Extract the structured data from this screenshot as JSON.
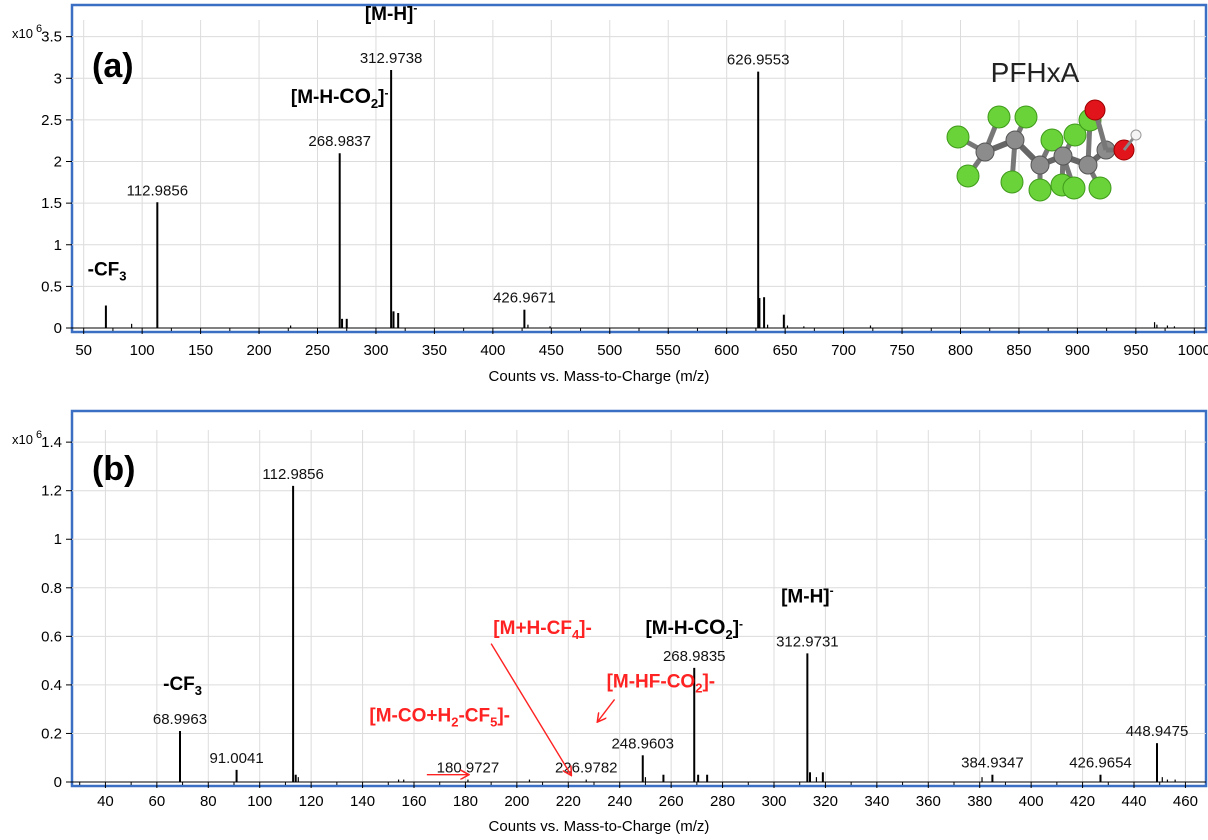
{
  "chart_data": [
    {
      "type": "bar",
      "panel_label": "(a)",
      "y_multiplier": "x10",
      "y_exponent": "6",
      "xlabel": "Counts vs. Mass-to-Charge (m/z)",
      "xlim": [
        40,
        1010
      ],
      "ylim": [
        0,
        3.7
      ],
      "xticks": [
        50,
        100,
        150,
        200,
        250,
        300,
        350,
        400,
        450,
        500,
        550,
        600,
        650,
        700,
        750,
        800,
        850,
        900,
        950,
        1000
      ],
      "yticks": [
        0,
        0.5,
        1,
        1.5,
        2,
        2.5,
        3,
        3.5
      ],
      "ytick_labels": [
        "0",
        "0.5",
        "1",
        "1.5",
        "2",
        "2.5",
        "3",
        "3.5"
      ],
      "grid": true,
      "molecule_label": "PFHxA",
      "peaks": [
        {
          "x": 68.9963,
          "y": 0.27
        },
        {
          "x": 91.0,
          "y": 0.05
        },
        {
          "x": 112.9856,
          "y": 1.51,
          "label": "112.9856"
        },
        {
          "x": 227.0,
          "y": 0.03
        },
        {
          "x": 268.9837,
          "y": 2.1,
          "label": "268.9837"
        },
        {
          "x": 271.0,
          "y": 0.11
        },
        {
          "x": 275.0,
          "y": 0.11
        },
        {
          "x": 312.9738,
          "y": 3.1,
          "label": "312.9738"
        },
        {
          "x": 315.0,
          "y": 0.2
        },
        {
          "x": 319.0,
          "y": 0.18
        },
        {
          "x": 426.9671,
          "y": 0.22,
          "label": "426.9671"
        },
        {
          "x": 430.0,
          "y": 0.04
        },
        {
          "x": 448.9,
          "y": 0.02
        },
        {
          "x": 626.9553,
          "y": 3.08,
          "label": "626.9553"
        },
        {
          "x": 628.0,
          "y": 0.36
        },
        {
          "x": 632.0,
          "y": 0.37
        },
        {
          "x": 635.0,
          "y": 0.04
        },
        {
          "x": 648.9,
          "y": 0.16
        },
        {
          "x": 652.0,
          "y": 0.03
        },
        {
          "x": 666.0,
          "y": 0.02
        },
        {
          "x": 723.0,
          "y": 0.03
        },
        {
          "x": 966.0,
          "y": 0.07
        },
        {
          "x": 968.0,
          "y": 0.04
        },
        {
          "x": 977.0,
          "y": 0.03
        },
        {
          "x": 983.0,
          "y": 0.02
        }
      ],
      "annotations": [
        {
          "base": "[M-H]",
          "sup": "-",
          "color": "#000000",
          "x": 312.9738,
          "y": 3.7
        },
        {
          "base": "[M-H-",
          "bold": "CO",
          "sub": "2",
          "tail": "]",
          "sup": "-",
          "color": "#000000",
          "x": 268.9837,
          "y": 2.7
        },
        {
          "base": "-CF",
          "sub": "3",
          "color": "#000000",
          "x": 70.0,
          "y": 0.63
        }
      ]
    },
    {
      "type": "bar",
      "panel_label": "(b)",
      "y_multiplier": "x10",
      "y_exponent": "6",
      "xlabel": "Counts vs. Mass-to-Charge (m/z)",
      "xlim": [
        27,
        468
      ],
      "ylim": [
        0,
        1.45
      ],
      "xticks": [
        40,
        60,
        80,
        100,
        120,
        140,
        160,
        180,
        200,
        220,
        240,
        260,
        280,
        300,
        320,
        340,
        360,
        380,
        400,
        420,
        440,
        460
      ],
      "yticks": [
        0,
        0.2,
        0.4,
        0.6,
        0.8,
        1,
        1.2,
        1.4
      ],
      "ytick_labels": [
        "0",
        "0.2",
        "0.4",
        "0.6",
        "0.8",
        "1",
        "1.2",
        "1.4"
      ],
      "grid": true,
      "peaks": [
        {
          "x": 68.9963,
          "y": 0.21,
          "label": "68.9963"
        },
        {
          "x": 91.0041,
          "y": 0.05,
          "label": "91.0041"
        },
        {
          "x": 112.9856,
          "y": 1.22,
          "label": "112.9856"
        },
        {
          "x": 114.0,
          "y": 0.03
        },
        {
          "x": 115.0,
          "y": 0.02
        },
        {
          "x": 154.0,
          "y": 0.01
        },
        {
          "x": 156.0,
          "y": 0.01
        },
        {
          "x": 180.9727,
          "y": 0.01,
          "label": "180.9727"
        },
        {
          "x": 204.9,
          "y": 0.01
        },
        {
          "x": 226.9782,
          "y": 0.01,
          "label": "226.9782"
        },
        {
          "x": 248.9603,
          "y": 0.11,
          "label": "248.9603"
        },
        {
          "x": 250.0,
          "y": 0.02
        },
        {
          "x": 257.0,
          "y": 0.03
        },
        {
          "x": 268.9835,
          "y": 0.47,
          "label": "268.9835"
        },
        {
          "x": 270.5,
          "y": 0.03
        },
        {
          "x": 274.0,
          "y": 0.03
        },
        {
          "x": 312.9731,
          "y": 0.53,
          "label": "312.9731"
        },
        {
          "x": 314.0,
          "y": 0.04
        },
        {
          "x": 316.5,
          "y": 0.02
        },
        {
          "x": 319.0,
          "y": 0.04
        },
        {
          "x": 380.9,
          "y": 0.02
        },
        {
          "x": 384.9347,
          "y": 0.03,
          "label": "384.9347"
        },
        {
          "x": 426.9654,
          "y": 0.03,
          "label": "426.9654"
        },
        {
          "x": 448.9475,
          "y": 0.16,
          "label": "448.9475"
        },
        {
          "x": 451.0,
          "y": 0.02
        },
        {
          "x": 453.0,
          "y": 0.01
        },
        {
          "x": 456.0,
          "y": 0.01
        }
      ],
      "annotations": [
        {
          "base": "[M-H]",
          "sup": "-",
          "color": "#000000",
          "x": 312.9731,
          "y": 0.74
        },
        {
          "base": "[M-H-",
          "bold": "CO",
          "sub": "2",
          "tail": "]",
          "sup": "-",
          "color": "#000000",
          "x": 268.9835,
          "y": 0.61
        },
        {
          "base": "-CF",
          "sub": "3",
          "color": "#000000",
          "x": 70.0,
          "y": 0.38
        },
        {
          "base": "[M+H-CF",
          "sub": "4",
          "tail": "]-",
          "color": "#ff2222",
          "x": 210.0,
          "y": 0.61
        },
        {
          "base": "[M-HF-CO",
          "sub": "2",
          "tail": "]-",
          "color": "#ff2222",
          "x": 256.0,
          "y": 0.39
        },
        {
          "base": "[M-CO+H",
          "sub": "2",
          "mid": "-CF",
          "sub2": "5",
          "tail": "]-",
          "color": "#ff2222",
          "x": 170.0,
          "y": 0.25
        }
      ],
      "arrows": [
        {
          "from": [
            190.0,
            0.57
          ],
          "to": [
            221.0,
            0.03
          ]
        },
        {
          "from": [
            238.0,
            0.34
          ],
          "to": [
            231.5,
            0.25
          ]
        },
        {
          "from": [
            165.0,
            0.03
          ],
          "to": [
            181.0,
            0.03
          ]
        }
      ]
    }
  ]
}
